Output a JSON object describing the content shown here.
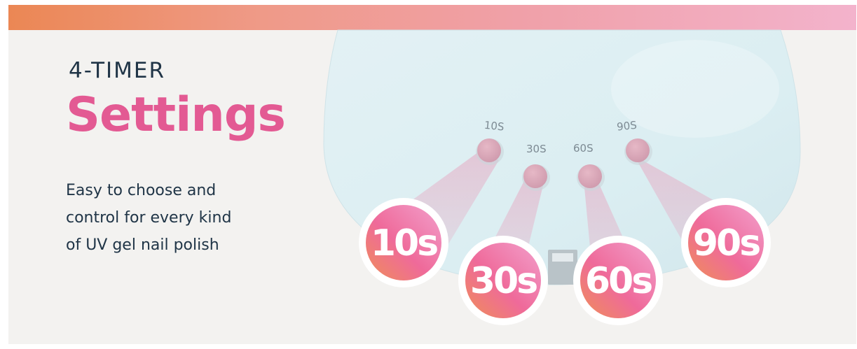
{
  "banner": {
    "eyebrow": "4-TIMER",
    "headline": "Settings",
    "description_lines": [
      "Easy to choose and",
      "control for every kind",
      "of UV gel nail polish"
    ]
  },
  "lamp": {
    "button_labels": [
      "10S",
      "30S",
      "60S",
      "90S"
    ]
  },
  "badges": [
    "10s",
    "30s",
    "60s",
    "90s"
  ],
  "colors": {
    "headline_pink": "#e35a93",
    "text_navy": "#1f3446",
    "lamp_body": "#dff0f4",
    "button_pink": "#dcaab9",
    "stripe_start": "#eb8754",
    "stripe_end": "#f3b3cc"
  }
}
